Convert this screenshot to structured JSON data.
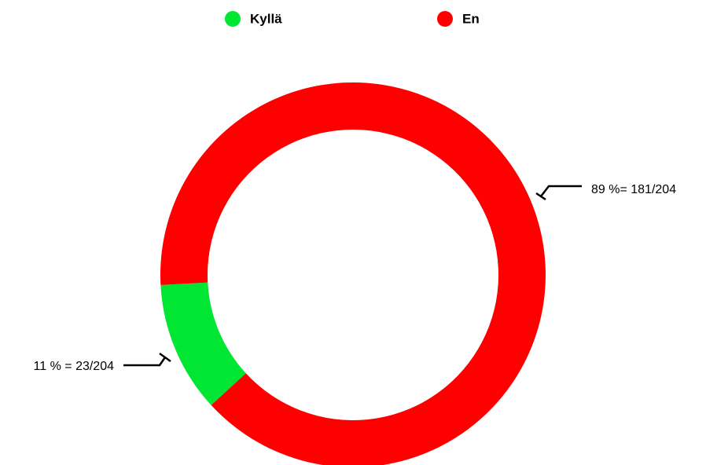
{
  "chart_data": {
    "type": "donut",
    "categories": [
      "Kyllä",
      "En"
    ],
    "values": [
      11,
      89
    ],
    "value_labels": [
      "11 % = 23/204",
      "89 %= 181/204"
    ],
    "colors": [
      "#00e632",
      "#ff0000"
    ]
  }
}
